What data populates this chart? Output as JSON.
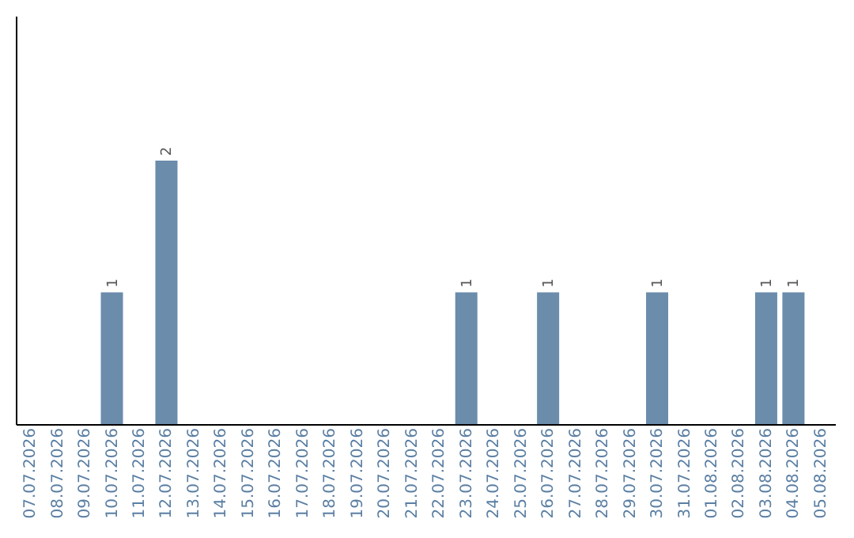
{
  "chart_data": {
    "type": "bar",
    "categories": [
      "07.07.2026",
      "08.07.2026",
      "09.07.2026",
      "10.07.2026",
      "11.07.2026",
      "12.07.2026",
      "13.07.2026",
      "14.07.2026",
      "15.07.2026",
      "16.07.2026",
      "17.07.2026",
      "18.07.2026",
      "19.07.2026",
      "20.07.2026",
      "21.07.2026",
      "22.07.2026",
      "23.07.2026",
      "24.07.2026",
      "25.07.2026",
      "26.07.2026",
      "27.07.2026",
      "28.07.2026",
      "29.07.2026",
      "30.07.2026",
      "31.07.2026",
      "01.08.2026",
      "02.08.2026",
      "03.08.2026",
      "04.08.2026",
      "05.08.2026"
    ],
    "values": [
      null,
      null,
      null,
      1,
      null,
      2,
      null,
      null,
      null,
      null,
      null,
      null,
      null,
      null,
      null,
      null,
      1,
      null,
      null,
      1,
      null,
      null,
      null,
      1,
      null,
      null,
      null,
      1,
      1,
      null
    ],
    "color": "#6b8cab",
    "ylim": [
      0,
      3.1
    ],
    "data_labels": true,
    "tick_labels": "x"
  }
}
